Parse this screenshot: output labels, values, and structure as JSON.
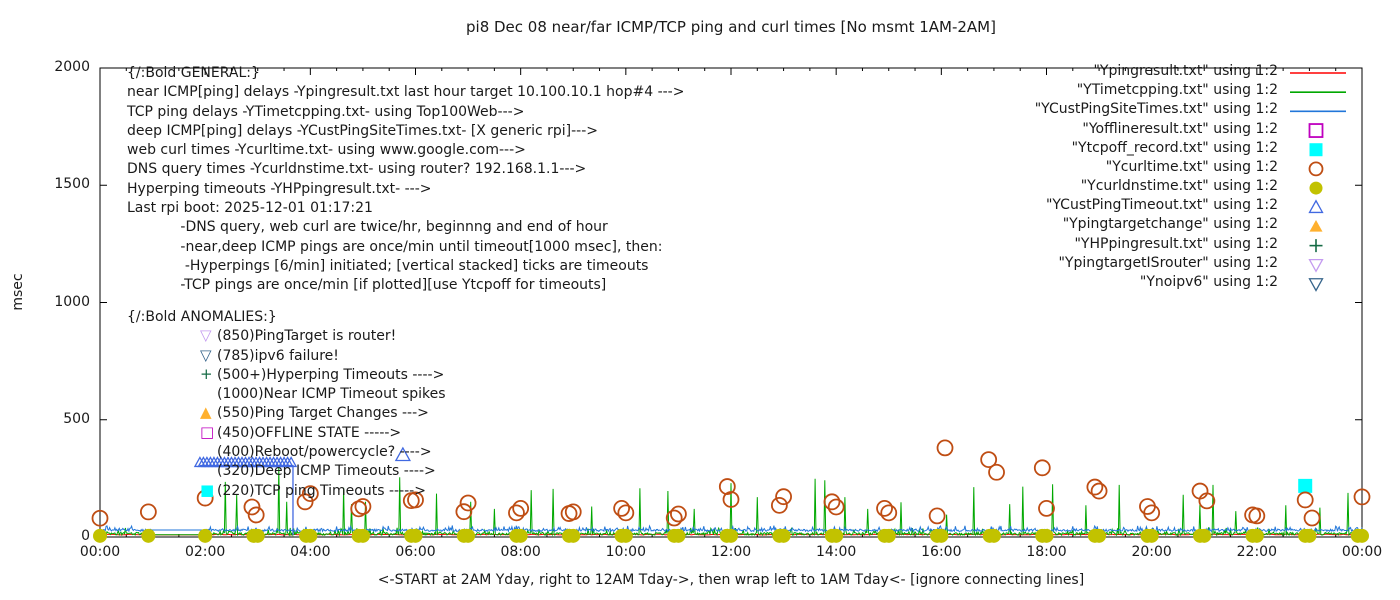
{
  "title": "pi8 Dec 08  near/far ICMP/TCP ping and curl times [No msmt 1AM-2AM]",
  "axes": {
    "y_label": "msec",
    "y_ticks": [
      "0",
      "500",
      "1000",
      "1500",
      "2000"
    ],
    "x_ticks": [
      "00:00",
      "02:00",
      "04:00",
      "06:00",
      "08:00",
      "10:00",
      "12:00",
      "14:00",
      "16:00",
      "18:00",
      "20:00",
      "22:00",
      "00:00"
    ],
    "x_caption": "<-START at 2AM Yday, right to 12AM Tday->, then wrap left to 1AM Tday<- [ignore connecting lines]"
  },
  "legend": [
    {
      "label": "\"Ypingresult.txt\" using 1:2",
      "kind": "line",
      "marker": "line",
      "color": "#ff0000"
    },
    {
      "label": "\"YTimetcpping.txt\" using 1:2",
      "kind": "line",
      "marker": "line",
      "color": "#00a800"
    },
    {
      "label": "\"YCustPingSiteTimes.txt\" using 1:2",
      "kind": "line",
      "marker": "line",
      "color": "#2176d9"
    },
    {
      "label": "\"Yofflineresult.txt\" using 1:2",
      "kind": "points",
      "marker": "square-open",
      "color": "#bf00bf"
    },
    {
      "label": "\"Ytcpoff_record.txt\" using 1:2",
      "kind": "points",
      "marker": "square-filled",
      "color": "#00ffff"
    },
    {
      "label": "\"Ycurltime.txt\" using 1:2",
      "kind": "points",
      "marker": "circle-open",
      "color": "#bf4d13"
    },
    {
      "label": "\"Ycurldnstime.txt\" using 1:2",
      "kind": "points",
      "marker": "circle-filled",
      "color": "#c2c200"
    },
    {
      "label": "\"YCustPingTimeout.txt\" using 1:2",
      "kind": "points",
      "marker": "triangle-up-open",
      "color": "#4169e1"
    },
    {
      "label": "\"Ypingtargetchange\" using 1:2",
      "kind": "points",
      "marker": "triangle-up-filled",
      "color": "#ffb02e"
    },
    {
      "label": "\"YHPpingresult.txt\" using 1:2",
      "kind": "points",
      "marker": "plus",
      "color": "#156b45"
    },
    {
      "label": "\"YpingtargetISrouter\" using 1:2",
      "kind": "points",
      "marker": "triangle-down-open",
      "color": "#c49bf0"
    },
    {
      "label": "\"Ynoipv6\" using 1:2",
      "kind": "points",
      "marker": "triangle-down-open",
      "color": "#36648b"
    }
  ],
  "annotations": {
    "general": {
      "header": "{/:Bold GENERAL:}",
      "lines": [
        "near ICMP[ping] delays -Ypingresult.txt last hour target 10.100.10.1 hop#4 --->",
        "TCP ping delays -YTimetcpping.txt- using Top100Web--->",
        "deep ICMP[ping] delays -YCustPingSiteTimes.txt- [X generic rpi]--->",
        "web curl times -Ycurltime.txt- using www.google.com--->",
        "DNS query times -Ycurldnstime.txt- using router? 192.168.1.1--->",
        "Hyperping timeouts -YHPpingresult.txt- --->",
        "Last rpi boot: 2025-12-01 01:17:21",
        "            -DNS query, web curl are twice/hr, beginnng and end of hour",
        "            -near,deep ICMP pings are once/min until timeout[1000 msec], then:",
        "             -Hyperpings [6/min] initiated; [vertical stacked] ticks are timeouts",
        "            -TCP pings are once/min [if plotted][use Ytcpoff for timeouts]"
      ]
    },
    "anomalies": {
      "header": "{/:Bold ANOMALIES:}",
      "items": [
        {
          "glyph": "▽",
          "color": "#c49bf0",
          "text": "(850)PingTarget is router!"
        },
        {
          "glyph": "▽",
          "color": "#36648b",
          "text": "(785)ipv6 failure!"
        },
        {
          "glyph": "+",
          "color": "#156b45",
          "text": "(500+)Hyperping Timeouts ---->"
        },
        {
          "glyph": "",
          "color": "",
          "text": "(1000)Near ICMP Timeout spikes"
        },
        {
          "glyph": "▲",
          "color": "#ffb02e",
          "text": "(550)Ping Target Changes --->"
        },
        {
          "glyph": "□",
          "color": "#bf00bf",
          "text": "(450)OFFLINE STATE ----->"
        },
        {
          "glyph": "",
          "color": "",
          "text": "(400)Reboot/powercycle? ---->"
        },
        {
          "glyph": "",
          "color": "",
          "text": "(320)Deep ICMP Timeouts ---->"
        },
        {
          "glyph": "■",
          "color": "#00ffff",
          "text": "(220)TCP ping Timeouts ----->"
        }
      ]
    }
  },
  "chart_data": {
    "type": "line",
    "title": "pi8 Dec 08  near/far ICMP/TCP ping and curl times [No msmt 1AM-2AM]",
    "xlabel": "<-START at 2AM Yday, right to 12AM Tday->, then wrap left to 1AM Tday<- [ignore connecting lines]",
    "ylabel": "msec",
    "xlim_hours": [
      0,
      24
    ],
    "ylim": [
      0,
      2000
    ],
    "x_major_tick_hours": 2,
    "x_minor_tick_hours": 0.5,
    "grid": false,
    "no_measurement_window_hours": [
      1,
      2
    ],
    "noise_seed": 42,
    "series": [
      {
        "name": "Ypingresult.txt",
        "kind": "line",
        "style": "noise",
        "color": "#ff0000",
        "base": 9,
        "amp": 3,
        "step_min": 3,
        "gap_value": 9
      },
      {
        "name": "YTimetcpping.txt",
        "kind": "line",
        "style": "noise-spikes",
        "color": "#00a800",
        "base": 8,
        "amp": 11,
        "burst_chance": 0.12,
        "burst_amp": 24,
        "step_min": 1,
        "gap_value": 10,
        "spikes": [
          [
            2.38,
            235
          ],
          [
            2.6,
            180
          ],
          [
            3.4,
            300
          ],
          [
            3.55,
            150
          ],
          [
            4.64,
            210
          ],
          [
            4.78,
            140
          ],
          [
            5.05,
            150
          ],
          [
            5.7,
            255
          ],
          [
            6.4,
            185
          ],
          [
            7.05,
            150
          ],
          [
            7.5,
            120
          ],
          [
            8.2,
            200
          ],
          [
            8.62,
            205
          ],
          [
            9.35,
            130
          ],
          [
            10.27,
            208
          ],
          [
            10.8,
            196
          ],
          [
            11.3,
            120
          ],
          [
            12.0,
            230
          ],
          [
            12.5,
            170
          ],
          [
            13.6,
            248
          ],
          [
            13.78,
            242
          ],
          [
            14.16,
            170
          ],
          [
            14.6,
            120
          ],
          [
            15.23,
            148
          ],
          [
            16.1,
            95
          ],
          [
            16.62,
            213
          ],
          [
            17.3,
            140
          ],
          [
            17.55,
            215
          ],
          [
            18.12,
            225
          ],
          [
            18.75,
            135
          ],
          [
            19.38,
            222
          ],
          [
            20.6,
            180
          ],
          [
            20.92,
            137
          ],
          [
            21.17,
            222
          ],
          [
            21.6,
            110
          ],
          [
            22.55,
            135
          ],
          [
            23.2,
            125
          ],
          [
            23.73,
            188
          ]
        ]
      },
      {
        "name": "YCustPingSiteTimes.txt",
        "kind": "line",
        "style": "noise-spikes",
        "color": "#2176d9",
        "base": 24,
        "amp": 9,
        "burst_chance": 0.2,
        "burst_amp": 16,
        "step_min": 1,
        "gap_value": 30,
        "spikes": [],
        "timeout_segment": {
          "t1": 1.9,
          "t2": 3.67,
          "value": 305,
          "color": "#4169e1"
        }
      },
      {
        "name": "Yofflineresult.txt",
        "kind": "points",
        "marker": "square-open",
        "color": "#bf00bf",
        "size": 7,
        "points": []
      },
      {
        "name": "Ytcpoff_record.txt",
        "kind": "points",
        "marker": "square-filled",
        "color": "#00ffff",
        "size": 7,
        "points": [
          [
            22.92,
            218
          ]
        ]
      },
      {
        "name": "Ycurltime.txt",
        "kind": "points",
        "marker": "circle-open",
        "color": "#bf4d13",
        "size": 7.5,
        "points": [
          [
            0.0,
            80
          ],
          [
            0.92,
            107
          ],
          [
            2.0,
            166
          ],
          [
            2.89,
            128
          ],
          [
            2.97,
            94
          ],
          [
            3.9,
            150
          ],
          [
            4.0,
            185
          ],
          [
            4.92,
            120
          ],
          [
            5.0,
            130
          ],
          [
            5.92,
            155
          ],
          [
            6.0,
            158
          ],
          [
            6.92,
            108
          ],
          [
            7.0,
            145
          ],
          [
            7.92,
            103
          ],
          [
            8.0,
            122
          ],
          [
            8.92,
            100
          ],
          [
            9.0,
            107
          ],
          [
            9.92,
            122
          ],
          [
            10.0,
            103
          ],
          [
            10.92,
            81
          ],
          [
            11.0,
            98
          ],
          [
            11.93,
            215
          ],
          [
            12.0,
            160
          ],
          [
            12.92,
            135
          ],
          [
            13.0,
            172
          ],
          [
            13.92,
            150
          ],
          [
            14.0,
            128
          ],
          [
            14.92,
            122
          ],
          [
            15.0,
            103
          ],
          [
            15.92,
            90
          ],
          [
            16.07,
            380
          ],
          [
            16.9,
            330
          ],
          [
            17.05,
            276
          ],
          [
            17.92,
            295
          ],
          [
            18.0,
            122
          ],
          [
            18.92,
            213
          ],
          [
            19.0,
            196
          ],
          [
            19.92,
            130
          ],
          [
            20.0,
            103
          ],
          [
            20.92,
            196
          ],
          [
            21.05,
            154
          ],
          [
            21.92,
            94
          ],
          [
            22.0,
            90
          ],
          [
            22.92,
            158
          ],
          [
            23.05,
            81
          ],
          [
            24.0,
            171
          ]
        ]
      },
      {
        "name": "Ycurldnstime.txt",
        "kind": "points",
        "marker": "circle-filled",
        "color": "#c2c200",
        "size": 7,
        "value": 5,
        "times": [
          0,
          0.92,
          2,
          2.92,
          3,
          3.92,
          4,
          4.92,
          5,
          5.92,
          6,
          6.92,
          7,
          7.92,
          8,
          8.92,
          9,
          9.92,
          10,
          10.92,
          11,
          11.92,
          12,
          12.92,
          13,
          13.92,
          14,
          14.92,
          15,
          15.92,
          16,
          16.92,
          17,
          17.92,
          18,
          18.92,
          19,
          19.92,
          20,
          20.92,
          21,
          21.92,
          22,
          22.92,
          23,
          23.92,
          24
        ]
      },
      {
        "name": "YCustPingTimeout.txt",
        "kind": "points",
        "marker": "triangle-up-open",
        "color": "#4169e1",
        "size": 5,
        "cluster": {
          "t1": 1.9,
          "t2": 3.64,
          "step": 0.0667,
          "value": 318
        },
        "points": [
          [
            5.76,
            350
          ]
        ],
        "single_size": 7
      },
      {
        "name": "Ypingtargetchange",
        "kind": "points",
        "marker": "triangle-up-filled",
        "color": "#ffb02e",
        "size": 7,
        "points": []
      },
      {
        "name": "YHPpingresult.txt",
        "kind": "points",
        "marker": "plus",
        "color": "#156b45",
        "size": 7,
        "points": []
      },
      {
        "name": "YpingtargetISrouter",
        "kind": "points",
        "marker": "triangle-down-open",
        "color": "#c49bf0",
        "size": 7,
        "points": []
      },
      {
        "name": "Ynoipv6",
        "kind": "points",
        "marker": "triangle-down-open",
        "color": "#36648b",
        "size": 7,
        "points": []
      }
    ]
  }
}
